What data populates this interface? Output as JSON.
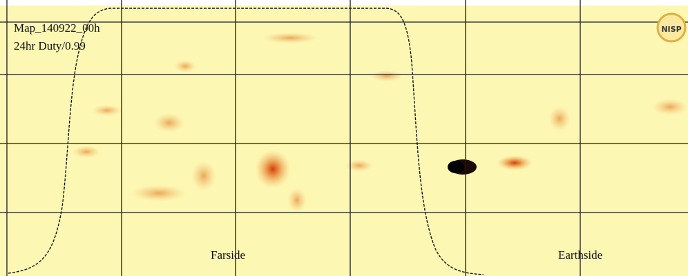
{
  "map": {
    "id_label": "Map_140922_00h",
    "duty_label": "24hr Duty/0.99",
    "farside_label": "Farside",
    "earthside_label": "Earthside",
    "logo": "NISP"
  }
}
